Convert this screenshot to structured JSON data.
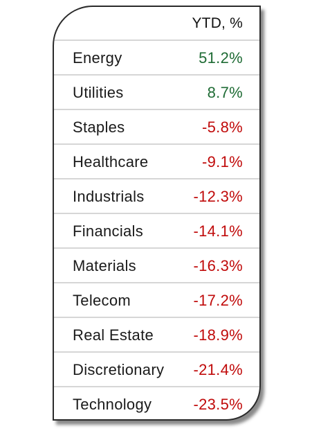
{
  "table": {
    "header": "YTD, %",
    "colors": {
      "positive": "#1e6b34",
      "negative": "#c00a0a"
    },
    "rows": [
      {
        "sector": "Energy",
        "ytd": "51.2%",
        "sign": "pos"
      },
      {
        "sector": "Utilities",
        "ytd": "8.7%",
        "sign": "pos"
      },
      {
        "sector": "Staples",
        "ytd": "-5.8%",
        "sign": "neg"
      },
      {
        "sector": "Healthcare",
        "ytd": "-9.1%",
        "sign": "neg"
      },
      {
        "sector": "Industrials",
        "ytd": "-12.3%",
        "sign": "neg"
      },
      {
        "sector": "Financials",
        "ytd": "-14.1%",
        "sign": "neg"
      },
      {
        "sector": "Materials",
        "ytd": "-16.3%",
        "sign": "neg"
      },
      {
        "sector": "Telecom",
        "ytd": "-17.2%",
        "sign": "neg"
      },
      {
        "sector": "Real Estate",
        "ytd": "-18.9%",
        "sign": "neg"
      },
      {
        "sector": "Discretionary",
        "ytd": "-21.4%",
        "sign": "neg"
      },
      {
        "sector": "Technology",
        "ytd": "-23.5%",
        "sign": "neg"
      }
    ]
  }
}
